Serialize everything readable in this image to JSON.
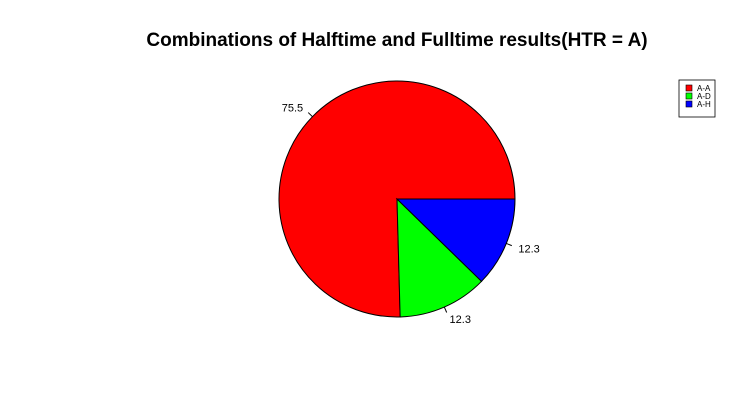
{
  "chart_data": {
    "type": "pie",
    "title": "Combinations of Halftime and Fulltime results(HTR = A)",
    "slices": [
      {
        "label": "A-A",
        "value": 75.5,
        "display": "75.5",
        "color": "#ff0000"
      },
      {
        "label": "A-D",
        "value": 12.3,
        "display": "12.3",
        "color": "#00ff00"
      },
      {
        "label": "A-H",
        "value": 12.3,
        "display": "12.3",
        "color": "#0000ff"
      }
    ],
    "start_angle_deg": 0,
    "direction": "counterclockwise",
    "legend_position": "top-right"
  }
}
